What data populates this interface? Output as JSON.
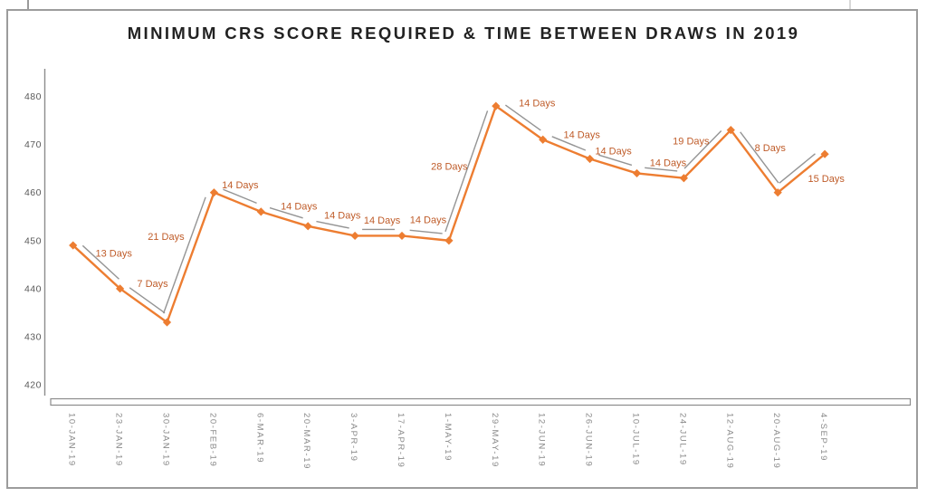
{
  "title": "MINIMUM CRS SCORE REQUIRED & TIME BETWEEN DRAWS IN 2019",
  "chart_data": {
    "type": "line",
    "title": "MINIMUM CRS SCORE REQUIRED & TIME BETWEEN DRAWS IN 2019",
    "categories": [
      "10-JAN-19",
      "23-JAN-19",
      "30-JAN-19",
      "20-FEB-19",
      "6-MAR-19",
      "20-MAR-19",
      "3-APR-19",
      "17-APR-19",
      "1-MAY-19",
      "29-MAY-19",
      "12-JUN-19",
      "26-JUN-19",
      "10-JUL-19",
      "24-JUL-19",
      "12-AUG-19",
      "20-AUG-19",
      "4-SEP-19"
    ],
    "series": [
      {
        "name": "Minimum CRS score",
        "values": [
          449,
          440,
          433,
          460,
          456,
          453,
          451,
          451,
          450,
          478,
          471,
          467,
          464,
          463,
          473,
          460,
          468
        ]
      }
    ],
    "segment_labels": [
      "13 Days",
      "7 Days",
      "21 Days",
      "14 Days",
      "14 Days",
      "14 Days",
      "14 Days",
      "14 Days",
      "28 Days",
      "14 Days",
      "14 Days",
      "14 Days",
      "14 Days",
      "19 Days",
      "8 Days",
      "15 Days"
    ],
    "yticks": [
      420,
      430,
      440,
      450,
      460,
      470,
      480
    ],
    "ylim": [
      418,
      486
    ],
    "xlabel": "",
    "ylabel": "",
    "grid": false,
    "legend": false,
    "marker": "diamond",
    "colors": {
      "line": "#ED7D31",
      "marker": "#ED7D31",
      "shadow_line": "#949494",
      "segment_label": "#BF5B28",
      "axis": "#8C8C8C",
      "tick_label": "#595959",
      "category_label": "#8A8A8A",
      "title": "#222222",
      "border": "#9C9C9C",
      "floor_stroke": "#8C8C8C"
    }
  }
}
